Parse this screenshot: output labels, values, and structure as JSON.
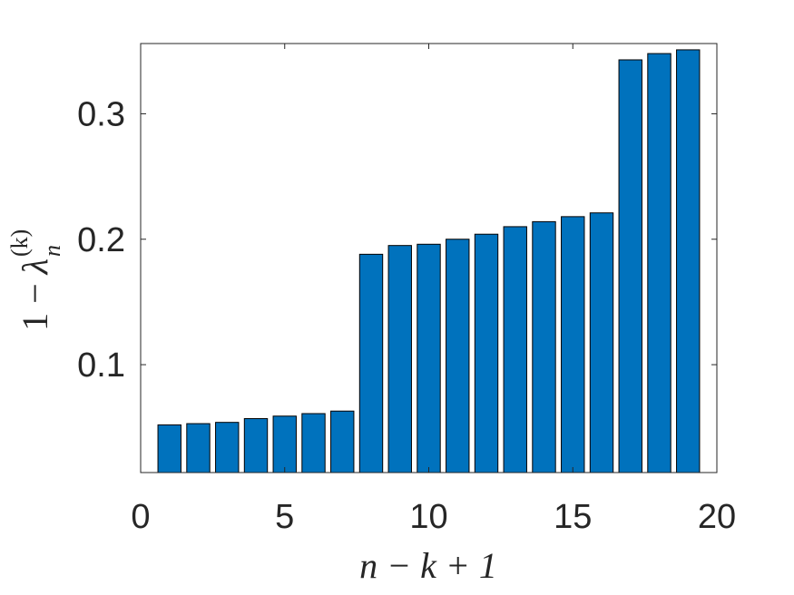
{
  "chart_data": {
    "type": "bar",
    "title": "",
    "xlabel": {
      "base": "n − k + 1"
    },
    "ylabel": {
      "prefix": "1 − ",
      "lambda": "λ",
      "sub": "n",
      "sup": "(k)"
    },
    "x": [
      1,
      2,
      3,
      4,
      5,
      6,
      7,
      8,
      9,
      10,
      11,
      12,
      13,
      14,
      15,
      16,
      17,
      18,
      19
    ],
    "values": [
      0.052,
      0.053,
      0.054,
      0.057,
      0.059,
      0.061,
      0.063,
      0.188,
      0.195,
      0.196,
      0.2,
      0.204,
      0.21,
      0.214,
      0.218,
      0.221,
      0.343,
      0.348,
      0.351
    ],
    "xlim": [
      0,
      20
    ],
    "ylim": [
      0.014,
      0.356
    ],
    "xticks": [
      0,
      5,
      10,
      15,
      20
    ],
    "xtick_labels": [
      "0",
      "5",
      "10",
      "15",
      "20"
    ],
    "yticks": [
      0.1,
      0.2,
      0.3
    ],
    "ytick_labels": [
      "0.1",
      "0.2",
      "0.3"
    ],
    "bar_color": "#0072BD",
    "grid": false,
    "legend": "none"
  }
}
